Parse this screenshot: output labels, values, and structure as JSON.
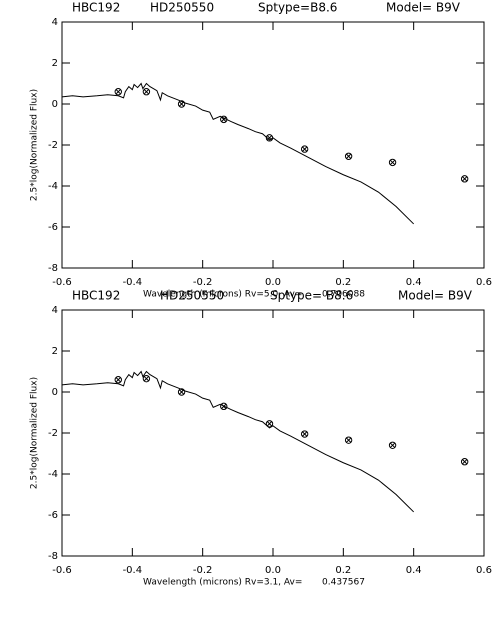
{
  "chart_data": [
    {
      "type": "line",
      "header": [
        "HBC192",
        "HD250550",
        "Sptype=B8.6",
        "Model= B9V"
      ],
      "xlabel": "Wavelength (microns) Rv=5.0, Av=",
      "av": "0.706088",
      "ylabel": "2.5*log(Normalized Flux)",
      "xlim": [
        -0.6,
        0.6
      ],
      "xticks": [
        -0.6,
        -0.4,
        -0.2,
        {
          "value": 0,
          "label": "0.0"
        },
        0.2,
        0.4,
        0.6
      ],
      "ylim": [
        -8,
        4
      ],
      "yticks": [
        4,
        2,
        0,
        -2,
        -4,
        -6,
        -8
      ],
      "series": [
        {
          "type": "line",
          "color": "#000000",
          "x": [
            -0.6,
            -0.57,
            -0.54,
            -0.5,
            -0.47,
            -0.44,
            -0.425,
            -0.42,
            -0.41,
            -0.4,
            -0.395,
            -0.385,
            -0.375,
            -0.37,
            -0.36,
            -0.35,
            -0.33,
            -0.32,
            -0.315,
            -0.3,
            -0.27,
            -0.25,
            -0.22,
            -0.2,
            -0.18,
            -0.17,
            -0.15,
            -0.12,
            -0.1,
            -0.07,
            -0.05,
            -0.03,
            -0.01,
            0.0,
            0.02,
            0.05,
            0.1,
            0.15,
            0.2,
            0.25,
            0.3,
            0.35,
            0.4
          ],
          "values": [
            0.35,
            0.4,
            0.35,
            0.4,
            0.45,
            0.4,
            0.3,
            0.6,
            0.85,
            0.7,
            0.95,
            0.8,
            1.0,
            0.75,
            1.0,
            0.85,
            0.65,
            0.2,
            0.55,
            0.4,
            0.2,
            0.05,
            -0.1,
            -0.3,
            -0.4,
            -0.75,
            -0.6,
            -0.85,
            -1.0,
            -1.2,
            -1.35,
            -1.45,
            -1.75,
            -1.65,
            -1.9,
            -2.15,
            -2.6,
            -3.05,
            -3.45,
            -3.8,
            -4.3,
            -5.0,
            -5.85
          ]
        },
        {
          "type": "scatter",
          "color": "#000000",
          "x": [
            -0.44,
            -0.36,
            -0.26,
            -0.14,
            -0.01,
            0.09,
            0.215,
            0.34,
            0.545
          ],
          "values": [
            0.6,
            0.6,
            0.0,
            -0.75,
            -1.65,
            -2.2,
            -2.55,
            -2.85,
            -3.65
          ]
        }
      ]
    },
    {
      "type": "line",
      "header": [
        "HBC192",
        "HD250550",
        "Sptype= B8.6",
        "Model= B9V"
      ],
      "xlabel": "Wavelength (microns) Rv=3.1,  Av=",
      "av": "0.437567",
      "ylabel": "2.5*log(Normalized Flux)",
      "xlim": [
        -0.6,
        0.6
      ],
      "xticks": [
        -0.6,
        -0.4,
        -0.2,
        {
          "value": 0,
          "label": "0.0"
        },
        0.2,
        0.4,
        0.6
      ],
      "ylim": [
        -8,
        4
      ],
      "yticks": [
        4,
        2,
        0,
        -2,
        -4,
        -6,
        -8
      ],
      "series": [
        {
          "type": "line",
          "color": "#000000",
          "x": [
            -0.6,
            -0.57,
            -0.54,
            -0.5,
            -0.47,
            -0.44,
            -0.425,
            -0.42,
            -0.41,
            -0.4,
            -0.395,
            -0.385,
            -0.375,
            -0.37,
            -0.36,
            -0.35,
            -0.33,
            -0.32,
            -0.315,
            -0.3,
            -0.27,
            -0.25,
            -0.22,
            -0.2,
            -0.18,
            -0.17,
            -0.15,
            -0.12,
            -0.1,
            -0.07,
            -0.05,
            -0.03,
            -0.01,
            0.0,
            0.02,
            0.05,
            0.1,
            0.15,
            0.2,
            0.25,
            0.3,
            0.35,
            0.4
          ],
          "values": [
            0.35,
            0.4,
            0.35,
            0.4,
            0.45,
            0.4,
            0.3,
            0.6,
            0.85,
            0.7,
            0.95,
            0.8,
            1.0,
            0.75,
            1.0,
            0.85,
            0.65,
            0.2,
            0.55,
            0.4,
            0.2,
            0.05,
            -0.1,
            -0.3,
            -0.4,
            -0.75,
            -0.6,
            -0.85,
            -1.0,
            -1.2,
            -1.35,
            -1.45,
            -1.75,
            -1.65,
            -1.9,
            -2.15,
            -2.6,
            -3.05,
            -3.45,
            -3.8,
            -4.3,
            -5.0,
            -5.85
          ]
        },
        {
          "type": "scatter",
          "color": "#000000",
          "x": [
            -0.44,
            -0.36,
            -0.26,
            -0.14,
            -0.01,
            0.09,
            0.215,
            0.34,
            0.545
          ],
          "values": [
            0.6,
            0.65,
            0.0,
            -0.7,
            -1.55,
            -2.05,
            -2.35,
            -2.6,
            -3.4
          ]
        }
      ]
    }
  ]
}
